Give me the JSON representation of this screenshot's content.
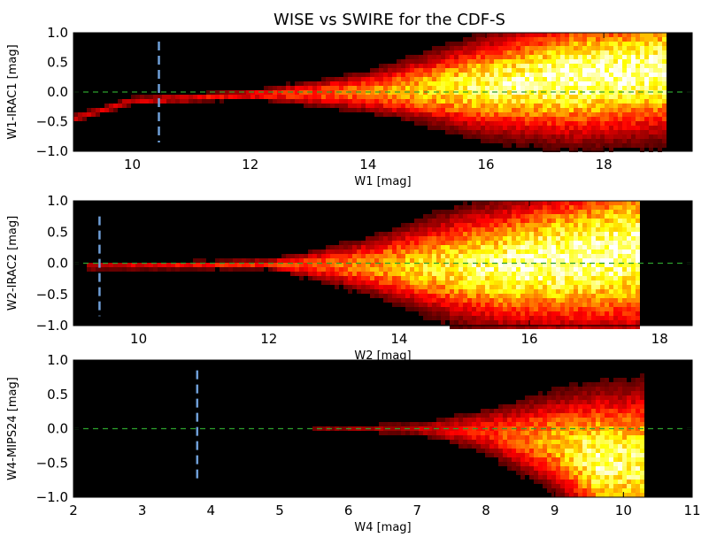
{
  "title": "WISE vs SWIRE for the CDF-S",
  "colors": {
    "zero_line": "#2ca02c",
    "limit_line": "#6f9fd8",
    "background": "#000000",
    "frame": "#000000"
  },
  "chart_data": [
    {
      "type": "heatmap",
      "xlabel": "W1 [mag]",
      "ylabel": "W1-IRAC1 [mag]",
      "xlim": [
        9.0,
        19.5
      ],
      "ylim": [
        -1.0,
        1.0
      ],
      "xticks": [
        10,
        12,
        14,
        16,
        18
      ],
      "yticks": [
        -1.0,
        -0.5,
        0.0,
        0.5,
        1.0
      ],
      "ytick_labels": [
        "−1.0",
        "−0.5",
        "0.0",
        "0.5",
        "1.0"
      ],
      "zero_line_y": 0.0,
      "limit_line": {
        "x": 10.45,
        "y": [
          -0.85,
          0.85
        ]
      },
      "density": {
        "x_start": 9.0,
        "x_end": 19.1,
        "offset": [
          [
            9.0,
            -0.45
          ],
          [
            10.0,
            -0.15
          ],
          [
            12.0,
            -0.05
          ],
          [
            14.0,
            0.0
          ],
          [
            16.0,
            0.1
          ],
          [
            17.5,
            0.25
          ],
          [
            19.0,
            0.35
          ]
        ],
        "spread": [
          [
            9.0,
            0.05
          ],
          [
            12.0,
            0.05
          ],
          [
            14.0,
            0.2
          ],
          [
            16.0,
            0.45
          ],
          [
            17.5,
            0.6
          ],
          [
            19.0,
            0.6
          ]
        ],
        "intensity": [
          [
            9.0,
            0.3
          ],
          [
            10.5,
            0.35
          ],
          [
            12.5,
            0.45
          ],
          [
            14.0,
            0.6
          ],
          [
            16.0,
            0.9
          ],
          [
            17.5,
            1.0
          ],
          [
            19.0,
            1.0
          ]
        ]
      }
    },
    {
      "type": "heatmap",
      "xlabel": "W2 [mag]",
      "ylabel": "W2-IRAC2 [mag]",
      "xlim": [
        9.0,
        18.5
      ],
      "ylim": [
        -1.0,
        1.0
      ],
      "xticks": [
        10,
        12,
        14,
        16,
        18
      ],
      "yticks": [
        -1.0,
        -0.5,
        0.0,
        0.5,
        1.0
      ],
      "ytick_labels": [
        "−1.0",
        "−0.5",
        "0.0",
        "0.5",
        "1.0"
      ],
      "zero_line_y": 0.0,
      "limit_line": {
        "x": 9.4,
        "y": [
          -0.85,
          0.75
        ]
      },
      "density": {
        "x_start": 9.2,
        "x_end": 17.7,
        "offset": [
          [
            9.2,
            -0.05
          ],
          [
            12.0,
            -0.02
          ],
          [
            14.0,
            -0.05
          ],
          [
            15.5,
            -0.05
          ],
          [
            16.5,
            0.05
          ],
          [
            17.6,
            0.2
          ]
        ],
        "spread": [
          [
            9.2,
            0.04
          ],
          [
            12.0,
            0.05
          ],
          [
            13.5,
            0.25
          ],
          [
            15.0,
            0.5
          ],
          [
            16.5,
            0.65
          ],
          [
            17.6,
            0.75
          ]
        ],
        "intensity": [
          [
            9.2,
            0.35
          ],
          [
            11.0,
            0.4
          ],
          [
            13.0,
            0.55
          ],
          [
            14.5,
            0.8
          ],
          [
            16.0,
            1.0
          ],
          [
            17.6,
            1.0
          ]
        ]
      }
    },
    {
      "type": "heatmap",
      "xlabel": "W4 [mag]",
      "ylabel": "W4-MIPS24 [mag]",
      "xlim": [
        2.0,
        11.0
      ],
      "ylim": [
        -1.0,
        1.0
      ],
      "xticks": [
        2,
        3,
        4,
        5,
        6,
        7,
        8,
        9,
        10,
        11
      ],
      "yticks": [
        -1.0,
        -0.5,
        0.0,
        0.5,
        1.0
      ],
      "ytick_labels": [
        "−1.0",
        "−0.5",
        "0.0",
        "0.5",
        "1.0"
      ],
      "zero_line_y": 0.0,
      "limit_line": {
        "x": 3.8,
        "y": [
          -0.75,
          0.85
        ]
      },
      "density": {
        "x_start": 5.5,
        "x_end": 10.3,
        "offset": [
          [
            5.5,
            0.0
          ],
          [
            7.0,
            0.0
          ],
          [
            8.0,
            -0.05
          ],
          [
            9.0,
            -0.2
          ],
          [
            9.6,
            -0.45
          ],
          [
            10.1,
            -0.5
          ]
        ],
        "spread": [
          [
            5.5,
            0.04
          ],
          [
            7.0,
            0.06
          ],
          [
            8.0,
            0.2
          ],
          [
            9.0,
            0.4
          ],
          [
            9.6,
            0.55
          ],
          [
            10.1,
            0.6
          ]
        ],
        "intensity": [
          [
            5.5,
            0.2
          ],
          [
            7.0,
            0.3
          ],
          [
            8.0,
            0.45
          ],
          [
            9.0,
            0.7
          ],
          [
            9.6,
            0.95
          ],
          [
            10.1,
            0.9
          ]
        ]
      }
    }
  ]
}
